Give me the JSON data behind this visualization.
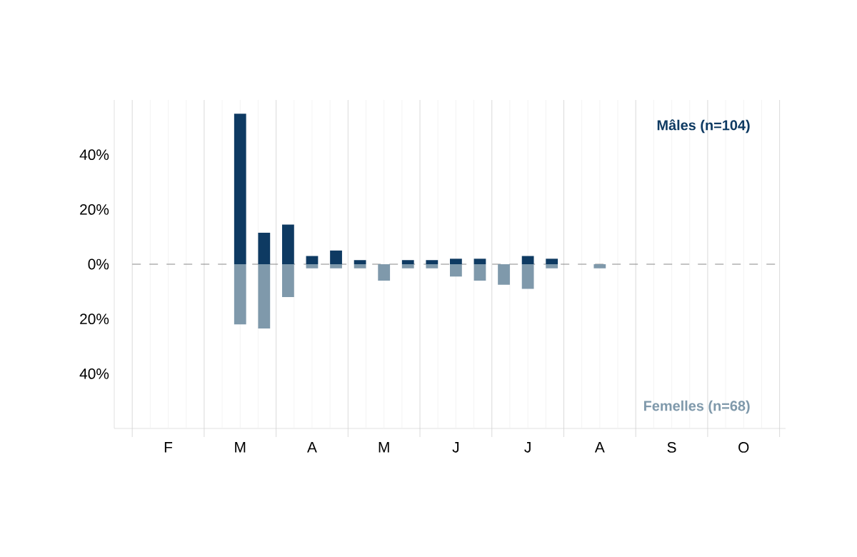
{
  "chart_data": {
    "type": "bar",
    "categories": [
      null,
      "F",
      null,
      null,
      "M",
      null,
      null,
      "A",
      null,
      null,
      "M",
      null,
      null,
      "J",
      null,
      null,
      "J",
      null,
      null,
      "A",
      null,
      null,
      "S",
      null,
      null,
      "O",
      null
    ],
    "series": [
      {
        "name": "Mâles (n=104)",
        "color": "#0e3a62",
        "values": [
          0,
          0,
          0,
          0,
          55,
          11.5,
          14.5,
          3,
          5,
          1.5,
          0,
          1.5,
          1.5,
          2,
          2,
          0,
          3,
          2,
          0,
          0,
          0,
          0,
          0,
          0,
          0,
          0,
          0
        ]
      },
      {
        "name": "Femelles (n=68)",
        "color": "#7f99ab",
        "values": [
          0,
          0,
          0,
          0,
          -22,
          -23.5,
          -12,
          -1.5,
          -1.5,
          -1.5,
          -6,
          -1.5,
          -1.5,
          -4.5,
          -6,
          -7.5,
          -9,
          -1.5,
          0,
          -1.5,
          0,
          0,
          0,
          0,
          0,
          0,
          0
        ]
      }
    ],
    "ylim": [
      -60,
      60
    ],
    "yticks": [
      {
        "value": -40,
        "label": "40%"
      },
      {
        "value": -20,
        "label": "20%"
      },
      {
        "value": 0,
        "label": "0%"
      },
      {
        "value": 20,
        "label": "20%"
      },
      {
        "value": 40,
        "label": "40%"
      }
    ],
    "ref_lines": [
      {
        "axis": "y",
        "value": 0,
        "color": "#8a8a8a",
        "line_style": "dashed"
      }
    ],
    "grid": "x"
  }
}
